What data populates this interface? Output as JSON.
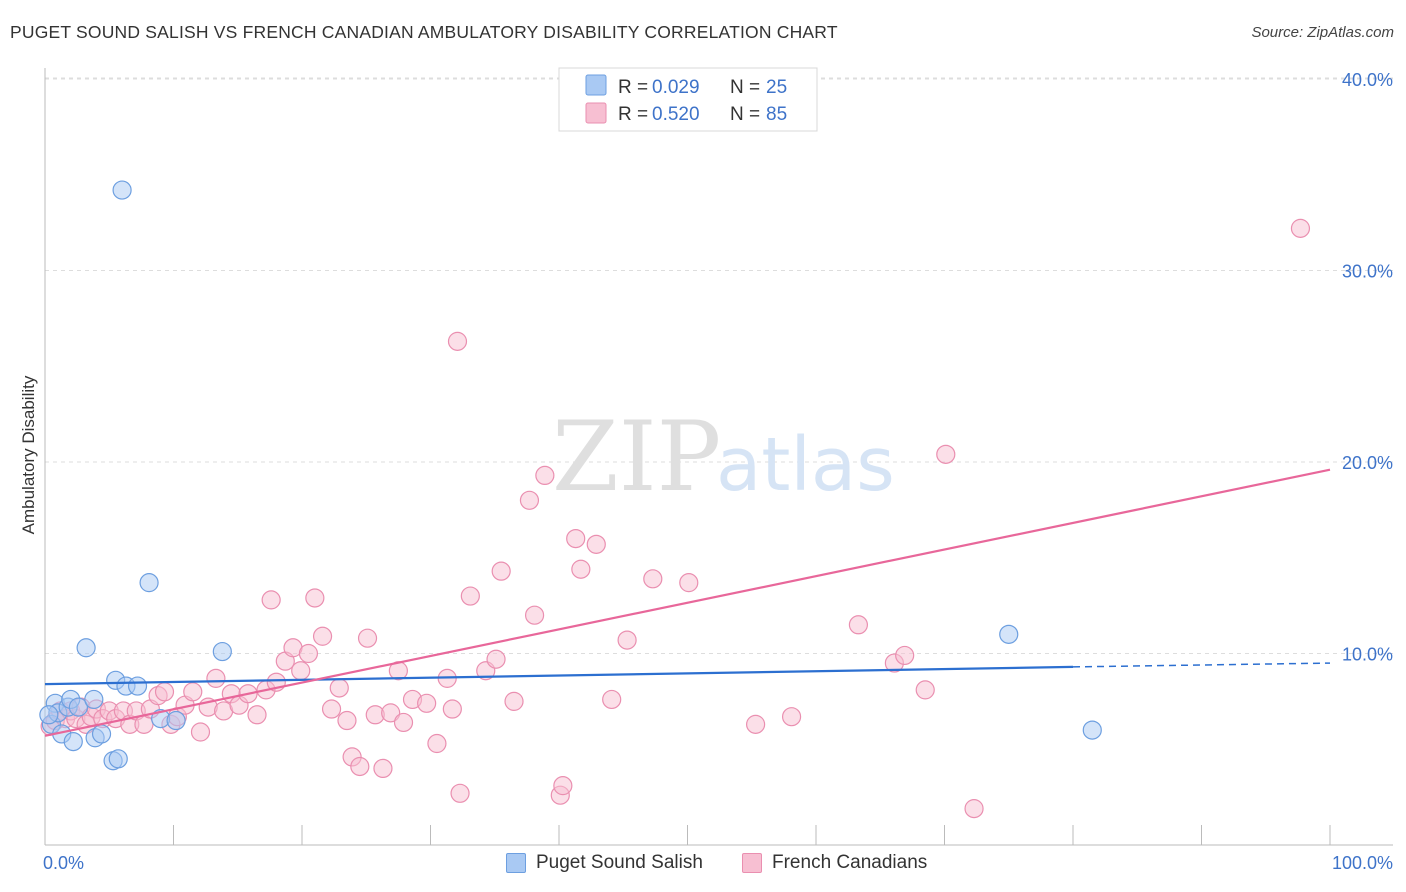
{
  "header": {
    "title": "PUGET SOUND SALISH VS FRENCH CANADIAN AMBULATORY DISABILITY CORRELATION CHART",
    "source": "Source: ZipAtlas.com"
  },
  "watermark": {
    "zip": "ZIP",
    "atlas": "atlas"
  },
  "colors": {
    "blue_fill": "#a9c9f3",
    "blue_stroke": "#6d9fe0",
    "blue_line": "#2c6fd0",
    "pink_fill": "#f7bfd2",
    "pink_stroke": "#ea8fb0",
    "pink_line": "#e8679a",
    "tick_label": "#3e73c9",
    "grid": "#dddddd"
  },
  "legend": {
    "rows": [
      {
        "r_label": "R = ",
        "r_value": "0.029",
        "n_label": "N = ",
        "n_value": "25"
      },
      {
        "r_label": "R = ",
        "r_value": "0.520",
        "n_label": "N = ",
        "n_value": "85"
      }
    ]
  },
  "chart_data": {
    "type": "scatter",
    "title": "PUGET SOUND SALISH VS FRENCH CANADIAN AMBULATORY DISABILITY CORRELATION CHART",
    "xlabel": "",
    "ylabel": "Ambulatory Disability",
    "xlim": [
      0,
      100
    ],
    "ylim": [
      0,
      42
    ],
    "x_tick_labels": [
      "0.0%",
      "100.0%"
    ],
    "y_ticks": [
      10,
      20,
      30,
      40
    ],
    "y_tick_labels": [
      "10.0%",
      "20.0%",
      "30.0%",
      "40.0%"
    ],
    "grid": true,
    "legend_position": "top-center",
    "series": [
      {
        "name": "Puget Sound Salish",
        "r": 0.029,
        "n": 25,
        "trend": {
          "x0": 0,
          "y0": 8.4,
          "x1": 80,
          "y1": 9.3,
          "dashed_to_x": 100,
          "dashed_to_y": 9.5
        },
        "points": [
          [
            0.5,
            6.3
          ],
          [
            0.8,
            7.4
          ],
          [
            1.0,
            6.9
          ],
          [
            1.3,
            5.8
          ],
          [
            1.8,
            7.2
          ],
          [
            2.0,
            7.6
          ],
          [
            2.2,
            5.4
          ],
          [
            2.6,
            7.2
          ],
          [
            3.2,
            10.3
          ],
          [
            3.8,
            7.6
          ],
          [
            3.9,
            5.6
          ],
          [
            4.4,
            5.8
          ],
          [
            5.3,
            4.4
          ],
          [
            5.5,
            8.6
          ],
          [
            5.7,
            4.5
          ],
          [
            6.3,
            8.3
          ],
          [
            7.2,
            8.3
          ],
          [
            8.1,
            13.7
          ],
          [
            9.0,
            6.6
          ],
          [
            10.2,
            6.5
          ],
          [
            13.8,
            10.1
          ],
          [
            6.0,
            34.2
          ],
          [
            75.0,
            11.0
          ],
          [
            81.5,
            6.0
          ],
          [
            0.3,
            6.8
          ]
        ]
      },
      {
        "name": "French Canadians",
        "r": 0.52,
        "n": 85,
        "trend": {
          "x0": 0,
          "y0": 5.7,
          "x1": 100,
          "y1": 19.6
        },
        "points": [
          [
            0.4,
            6.2
          ],
          [
            0.8,
            6.5
          ],
          [
            1.2,
            7.0
          ],
          [
            1.6,
            6.6
          ],
          [
            2.0,
            7.0
          ],
          [
            2.4,
            6.6
          ],
          [
            2.8,
            7.2
          ],
          [
            3.2,
            6.3
          ],
          [
            3.6,
            6.7
          ],
          [
            4.0,
            7.1
          ],
          [
            4.5,
            6.6
          ],
          [
            5.0,
            7.0
          ],
          [
            5.5,
            6.6
          ],
          [
            6.1,
            7.0
          ],
          [
            6.6,
            6.3
          ],
          [
            7.1,
            7.0
          ],
          [
            7.7,
            6.3
          ],
          [
            8.2,
            7.1
          ],
          [
            8.8,
            7.8
          ],
          [
            9.3,
            8.0
          ],
          [
            9.8,
            6.3
          ],
          [
            10.3,
            6.7
          ],
          [
            10.9,
            7.3
          ],
          [
            11.5,
            8.0
          ],
          [
            12.1,
            5.9
          ],
          [
            12.7,
            7.2
          ],
          [
            13.3,
            8.7
          ],
          [
            13.9,
            7.0
          ],
          [
            14.5,
            7.9
          ],
          [
            15.1,
            7.3
          ],
          [
            15.8,
            7.9
          ],
          [
            16.5,
            6.8
          ],
          [
            17.2,
            8.1
          ],
          [
            17.6,
            12.8
          ],
          [
            18.0,
            8.5
          ],
          [
            18.7,
            9.6
          ],
          [
            19.3,
            10.3
          ],
          [
            19.9,
            9.1
          ],
          [
            20.5,
            10.0
          ],
          [
            21.0,
            12.9
          ],
          [
            21.6,
            10.9
          ],
          [
            22.3,
            7.1
          ],
          [
            22.9,
            8.2
          ],
          [
            23.5,
            6.5
          ],
          [
            23.9,
            4.6
          ],
          [
            24.5,
            4.1
          ],
          [
            25.1,
            10.8
          ],
          [
            25.7,
            6.8
          ],
          [
            26.3,
            4.0
          ],
          [
            26.9,
            6.9
          ],
          [
            27.5,
            9.1
          ],
          [
            27.9,
            6.4
          ],
          [
            28.6,
            7.6
          ],
          [
            29.7,
            7.4
          ],
          [
            30.5,
            5.3
          ],
          [
            31.3,
            8.7
          ],
          [
            31.7,
            7.1
          ],
          [
            32.3,
            2.7
          ],
          [
            33.1,
            13.0
          ],
          [
            34.3,
            9.1
          ],
          [
            35.1,
            9.7
          ],
          [
            35.5,
            14.3
          ],
          [
            36.5,
            7.5
          ],
          [
            37.7,
            18.0
          ],
          [
            38.1,
            12.0
          ],
          [
            38.9,
            19.3
          ],
          [
            40.1,
            2.6
          ],
          [
            40.3,
            3.1
          ],
          [
            41.3,
            16.0
          ],
          [
            41.7,
            14.4
          ],
          [
            42.9,
            15.7
          ],
          [
            44.1,
            7.6
          ],
          [
            45.3,
            10.7
          ],
          [
            47.3,
            13.9
          ],
          [
            50.1,
            13.7
          ],
          [
            55.3,
            6.3
          ],
          [
            58.1,
            6.7
          ],
          [
            63.3,
            11.5
          ],
          [
            66.1,
            9.5
          ],
          [
            66.9,
            9.9
          ],
          [
            68.5,
            8.1
          ],
          [
            70.1,
            20.4
          ],
          [
            72.3,
            1.9
          ],
          [
            97.7,
            32.2
          ],
          [
            32.1,
            26.3
          ]
        ]
      }
    ]
  },
  "bottom_legend": {
    "items": [
      "Puget Sound Salish",
      "French Canadians"
    ]
  }
}
